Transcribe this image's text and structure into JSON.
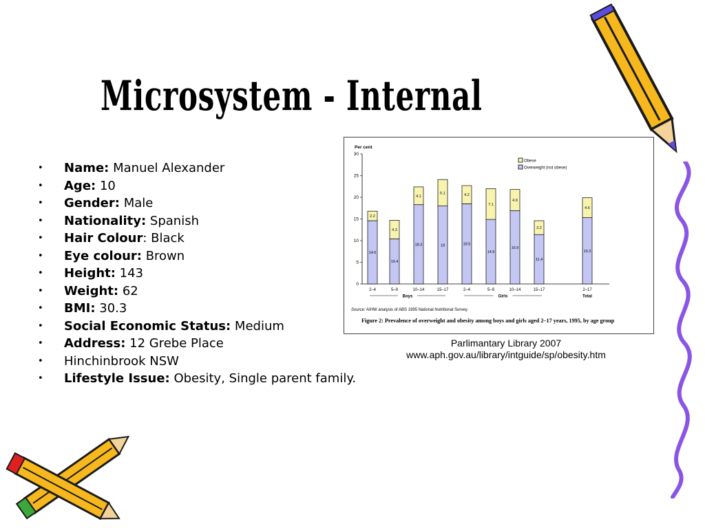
{
  "slide": {
    "title": "Microsystem - Internal",
    "items": [
      {
        "label": "Name:",
        "value": " Manuel Alexander"
      },
      {
        "label": "Age:",
        "value": " 10"
      },
      {
        "label": "Gender:",
        "value": " Male"
      },
      {
        "label": "Nationality:",
        "value": " Spanish"
      },
      {
        "label": "Hair Colour",
        "value": ": Black"
      },
      {
        "label": "Eye colour:",
        "value": " Brown"
      },
      {
        "label": "Height:",
        "value": " 143"
      },
      {
        "label": "Weight:",
        "value": " 62"
      },
      {
        "label": "BMI:",
        "value": " 30.3"
      },
      {
        "label": "Social Economic Status:",
        "value": " Medium"
      },
      {
        "label": "Address:",
        "value": " 12 Grebe Place"
      },
      {
        "label": "",
        "value": "Hinchinbrook NSW"
      },
      {
        "label": "Lifestyle Issue:",
        "value": " Obesity, Single parent family."
      }
    ],
    "bullet": "•",
    "citation_line1": "Parlimantary Library  2007",
    "citation_line2": "www.aph.gov.au/library/intguide/sp/obesity.htm"
  },
  "chart_data": {
    "type": "bar",
    "stacked": true,
    "ylabel": "Per cent",
    "ylim": [
      0,
      30
    ],
    "yticks": [
      0,
      5,
      10,
      15,
      20,
      25,
      30
    ],
    "categories": [
      "2–4",
      "5–9",
      "10–14",
      "15–17",
      "2–4",
      "5–9",
      "10–14",
      "15–17",
      "2–17"
    ],
    "groups": [
      {
        "label": "Boys",
        "categories": [
          0,
          1,
          2,
          3
        ]
      },
      {
        "label": "Girls",
        "categories": [
          4,
          5,
          6,
          7
        ]
      },
      {
        "label": "Total",
        "categories": [
          8
        ]
      }
    ],
    "series": [
      {
        "name": "Overweight (not obese)",
        "color": "#c4c6f4",
        "values": [
          14.6,
          10.4,
          18.3,
          18.0,
          18.5,
          14.9,
          16.9,
          11.4,
          15.3
        ]
      },
      {
        "name": "Obese",
        "color": "#f8f4b0",
        "values": [
          2.2,
          4.3,
          4.1,
          6.1,
          4.2,
          7.1,
          4.9,
          3.2,
          4.6
        ]
      }
    ],
    "legend_order": [
      "Obese",
      "Overweight (not obese)"
    ],
    "legend_position": "top-right",
    "source_label": "Source:",
    "source_text": " AIHW analysis of ABS 1995 National Nutritional Survey.",
    "caption": "Figure 2: Prevalence of overweight and obesity among boys and girls aged 2–17 years, 1995, by age group"
  },
  "colors": {
    "pencil_body": "#f6b81c",
    "pencil_edge": "#1a1a1a",
    "squiggle": "#8a55e6",
    "green_eraser": "#3aa83a",
    "red_eraser": "#e02020"
  }
}
